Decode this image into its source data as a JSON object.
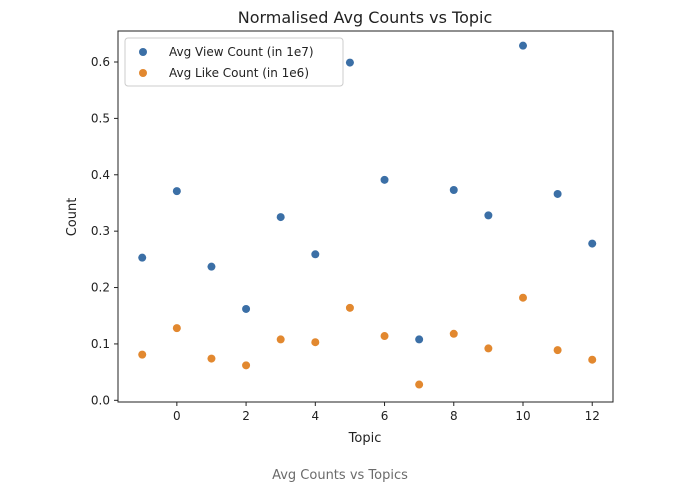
{
  "caption": "Avg Counts vs Topics",
  "chart_data": {
    "type": "scatter",
    "title": "Normalised Avg Counts vs Topic",
    "xlabel": "Topic",
    "ylabel": "Count",
    "xlim": [
      -1.7,
      12.6
    ],
    "ylim": [
      -0.003,
      0.655
    ],
    "xticks": [
      0,
      2,
      4,
      6,
      8,
      10,
      12
    ],
    "yticks": [
      0.0,
      0.1,
      0.2,
      0.3,
      0.4,
      0.5,
      0.6
    ],
    "ytick_labels": [
      "0.0",
      "0.1",
      "0.2",
      "0.3",
      "0.4",
      "0.5",
      "0.6"
    ],
    "grid": false,
    "legend_position": "top-left",
    "x": [
      -1,
      0,
      1,
      2,
      3,
      4,
      5,
      6,
      7,
      8,
      9,
      10,
      11,
      12
    ],
    "series": [
      {
        "name": "Avg View Count (in 1e7)",
        "color": "#3b6fa6",
        "values": [
          0.253,
          0.371,
          0.237,
          0.162,
          0.325,
          0.259,
          0.599,
          0.391,
          0.108,
          0.373,
          0.328,
          0.629,
          0.366,
          0.278
        ]
      },
      {
        "name": "Avg Like Count (in 1e6)",
        "color": "#e2882f",
        "values": [
          0.081,
          0.128,
          0.074,
          0.062,
          0.108,
          0.103,
          0.164,
          0.114,
          0.028,
          0.118,
          0.092,
          0.182,
          0.089,
          0.072
        ]
      }
    ]
  }
}
